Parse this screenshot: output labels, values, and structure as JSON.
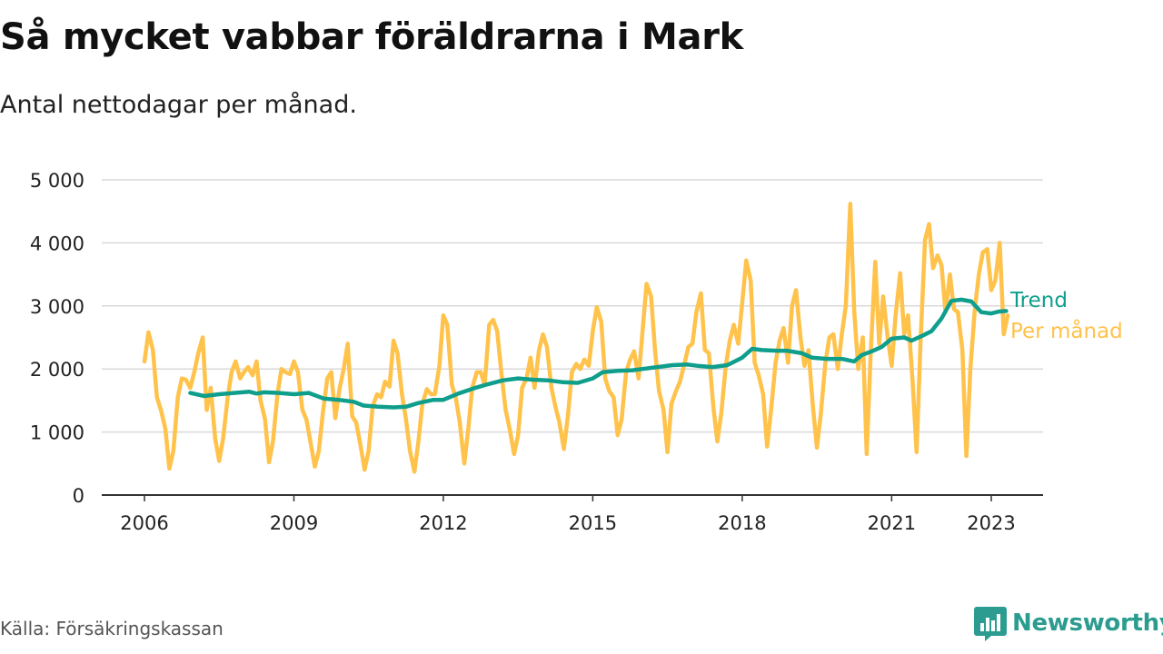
{
  "title": "Så mycket vabbar föräldrarna i Mark",
  "subtitle": "Antal nettodagar per månad.",
  "source": "Källa: Försäkringskassan",
  "brand": {
    "name": "Newsworthy",
    "icon": "bar-chart-icon",
    "color": "#2b9c8f"
  },
  "chart_data": {
    "type": "line",
    "xlim": [
      2006.0,
      2023.75
    ],
    "ylim": [
      0,
      5000
    ],
    "y_ticks": [
      0,
      1000,
      2000,
      3000,
      4000,
      5000
    ],
    "y_tick_labels": [
      "0",
      "1 000",
      "2 000",
      "3 000",
      "4 000",
      "5 000"
    ],
    "x_ticks": [
      2006,
      2009,
      2012,
      2015,
      2018,
      2021,
      2023
    ],
    "x_tick_labels": [
      "2006",
      "2009",
      "2012",
      "2015",
      "2018",
      "2021",
      "2023"
    ],
    "grid": true,
    "legend": "direct labels at line ends (right)",
    "series": [
      {
        "name": "Per månad",
        "color": "#ffc24b",
        "points": [
          [
            2006.0,
            2120
          ],
          [
            2006.08,
            2580
          ],
          [
            2006.17,
            2300
          ],
          [
            2006.25,
            1550
          ],
          [
            2006.33,
            1350
          ],
          [
            2006.42,
            1050
          ],
          [
            2006.5,
            420
          ],
          [
            2006.58,
            700
          ],
          [
            2006.67,
            1550
          ],
          [
            2006.75,
            1850
          ],
          [
            2006.83,
            1830
          ],
          [
            2006.92,
            1700
          ],
          [
            2007.0,
            1950
          ],
          [
            2007.08,
            2250
          ],
          [
            2007.17,
            2500
          ],
          [
            2007.25,
            1350
          ],
          [
            2007.33,
            1700
          ],
          [
            2007.42,
            900
          ],
          [
            2007.5,
            540
          ],
          [
            2007.58,
            900
          ],
          [
            2007.67,
            1550
          ],
          [
            2007.75,
            1950
          ],
          [
            2007.83,
            2120
          ],
          [
            2007.92,
            1850
          ],
          [
            2008.0,
            1950
          ],
          [
            2008.08,
            2030
          ],
          [
            2008.17,
            1900
          ],
          [
            2008.25,
            2120
          ],
          [
            2008.33,
            1500
          ],
          [
            2008.42,
            1200
          ],
          [
            2008.5,
            520
          ],
          [
            2008.58,
            850
          ],
          [
            2008.67,
            1600
          ],
          [
            2008.75,
            2000
          ],
          [
            2008.83,
            1950
          ],
          [
            2008.92,
            1920
          ],
          [
            2009.0,
            2120
          ],
          [
            2009.08,
            1950
          ],
          [
            2009.17,
            1350
          ],
          [
            2009.25,
            1200
          ],
          [
            2009.33,
            850
          ],
          [
            2009.42,
            450
          ],
          [
            2009.5,
            700
          ],
          [
            2009.58,
            1300
          ],
          [
            2009.67,
            1850
          ],
          [
            2009.75,
            1950
          ],
          [
            2009.83,
            1220
          ],
          [
            2009.92,
            1700
          ],
          [
            2010.0,
            2000
          ],
          [
            2010.08,
            2400
          ],
          [
            2010.17,
            1250
          ],
          [
            2010.25,
            1150
          ],
          [
            2010.33,
            820
          ],
          [
            2010.42,
            400
          ],
          [
            2010.5,
            700
          ],
          [
            2010.58,
            1400
          ],
          [
            2010.67,
            1600
          ],
          [
            2010.75,
            1550
          ],
          [
            2010.83,
            1800
          ],
          [
            2010.92,
            1720
          ],
          [
            2011.0,
            2450
          ],
          [
            2011.08,
            2250
          ],
          [
            2011.17,
            1600
          ],
          [
            2011.25,
            1200
          ],
          [
            2011.33,
            700
          ],
          [
            2011.42,
            370
          ],
          [
            2011.5,
            850
          ],
          [
            2011.58,
            1450
          ],
          [
            2011.67,
            1680
          ],
          [
            2011.75,
            1600
          ],
          [
            2011.83,
            1600
          ],
          [
            2011.92,
            2050
          ],
          [
            2012.0,
            2850
          ],
          [
            2012.08,
            2700
          ],
          [
            2012.17,
            1750
          ],
          [
            2012.25,
            1550
          ],
          [
            2012.33,
            1150
          ],
          [
            2012.42,
            500
          ],
          [
            2012.5,
            1050
          ],
          [
            2012.58,
            1700
          ],
          [
            2012.67,
            1950
          ],
          [
            2012.75,
            1950
          ],
          [
            2012.83,
            1750
          ],
          [
            2012.92,
            2700
          ],
          [
            2013.0,
            2780
          ],
          [
            2013.08,
            2600
          ],
          [
            2013.17,
            1900
          ],
          [
            2013.25,
            1350
          ],
          [
            2013.33,
            1050
          ],
          [
            2013.42,
            650
          ],
          [
            2013.5,
            950
          ],
          [
            2013.58,
            1700
          ],
          [
            2013.67,
            1850
          ],
          [
            2013.75,
            2180
          ],
          [
            2013.83,
            1700
          ],
          [
            2013.92,
            2300
          ],
          [
            2014.0,
            2550
          ],
          [
            2014.08,
            2350
          ],
          [
            2014.17,
            1700
          ],
          [
            2014.25,
            1400
          ],
          [
            2014.33,
            1150
          ],
          [
            2014.42,
            730
          ],
          [
            2014.5,
            1250
          ],
          [
            2014.58,
            1950
          ],
          [
            2014.67,
            2080
          ],
          [
            2014.75,
            2000
          ],
          [
            2014.83,
            2150
          ],
          [
            2014.92,
            2050
          ],
          [
            2015.0,
            2600
          ],
          [
            2015.08,
            2980
          ],
          [
            2015.17,
            2750
          ],
          [
            2015.25,
            1850
          ],
          [
            2015.33,
            1650
          ],
          [
            2015.42,
            1550
          ],
          [
            2015.5,
            950
          ],
          [
            2015.58,
            1200
          ],
          [
            2015.67,
            1950
          ],
          [
            2015.75,
            2150
          ],
          [
            2015.83,
            2280
          ],
          [
            2015.92,
            1850
          ],
          [
            2016.0,
            2600
          ],
          [
            2016.08,
            3350
          ],
          [
            2016.17,
            3150
          ],
          [
            2016.25,
            2300
          ],
          [
            2016.33,
            1650
          ],
          [
            2016.42,
            1350
          ],
          [
            2016.5,
            680
          ],
          [
            2016.58,
            1450
          ],
          [
            2016.67,
            1650
          ],
          [
            2016.75,
            1800
          ],
          [
            2016.83,
            2050
          ],
          [
            2016.92,
            2350
          ],
          [
            2017.0,
            2400
          ],
          [
            2017.08,
            2900
          ],
          [
            2017.17,
            3200
          ],
          [
            2017.25,
            2300
          ],
          [
            2017.33,
            2250
          ],
          [
            2017.42,
            1400
          ],
          [
            2017.5,
            850
          ],
          [
            2017.58,
            1300
          ],
          [
            2017.67,
            2050
          ],
          [
            2017.75,
            2450
          ],
          [
            2017.83,
            2700
          ],
          [
            2017.92,
            2400
          ],
          [
            2018.0,
            3050
          ],
          [
            2018.08,
            3720
          ],
          [
            2018.17,
            3400
          ],
          [
            2018.25,
            2100
          ],
          [
            2018.33,
            1900
          ],
          [
            2018.42,
            1600
          ],
          [
            2018.5,
            770
          ],
          [
            2018.58,
            1350
          ],
          [
            2018.67,
            2100
          ],
          [
            2018.75,
            2450
          ],
          [
            2018.83,
            2650
          ],
          [
            2018.92,
            2100
          ],
          [
            2019.0,
            3000
          ],
          [
            2019.08,
            3250
          ],
          [
            2019.17,
            2500
          ],
          [
            2019.25,
            2050
          ],
          [
            2019.33,
            2300
          ],
          [
            2019.42,
            1400
          ],
          [
            2019.5,
            750
          ],
          [
            2019.58,
            1300
          ],
          [
            2019.67,
            2100
          ],
          [
            2019.75,
            2500
          ],
          [
            2019.83,
            2550
          ],
          [
            2019.92,
            2000
          ],
          [
            2020.0,
            2550
          ],
          [
            2020.08,
            3000
          ],
          [
            2020.17,
            4620
          ],
          [
            2020.25,
            2900
          ],
          [
            2020.33,
            2000
          ],
          [
            2020.42,
            2500
          ],
          [
            2020.5,
            650
          ],
          [
            2020.58,
            2250
          ],
          [
            2020.67,
            3700
          ],
          [
            2020.75,
            2400
          ],
          [
            2020.83,
            3150
          ],
          [
            2020.92,
            2500
          ],
          [
            2021.0,
            2050
          ],
          [
            2021.08,
            2850
          ],
          [
            2021.17,
            3520
          ],
          [
            2021.25,
            2550
          ],
          [
            2021.33,
            2850
          ],
          [
            2021.42,
            1800
          ],
          [
            2021.5,
            680
          ],
          [
            2021.58,
            2450
          ],
          [
            2021.67,
            4050
          ],
          [
            2021.75,
            4300
          ],
          [
            2021.83,
            3600
          ],
          [
            2021.92,
            3800
          ],
          [
            2022.0,
            3650
          ],
          [
            2022.08,
            2900
          ],
          [
            2022.17,
            3500
          ],
          [
            2022.25,
            2950
          ],
          [
            2022.33,
            2900
          ],
          [
            2022.42,
            2300
          ],
          [
            2022.5,
            620
          ],
          [
            2022.58,
            2000
          ],
          [
            2022.67,
            2950
          ],
          [
            2022.75,
            3500
          ],
          [
            2022.83,
            3850
          ],
          [
            2022.92,
            3900
          ],
          [
            2023.0,
            3250
          ],
          [
            2023.08,
            3400
          ],
          [
            2023.17,
            4000
          ],
          [
            2023.25,
            2550
          ],
          [
            2023.33,
            2850
          ]
        ]
      },
      {
        "name": "Trend",
        "color": "#0f9e8c",
        "points": [
          [
            2006.92,
            1620
          ],
          [
            2007.2,
            1570
          ],
          [
            2007.5,
            1600
          ],
          [
            2007.8,
            1620
          ],
          [
            2008.1,
            1640
          ],
          [
            2008.25,
            1610
          ],
          [
            2008.4,
            1630
          ],
          [
            2008.7,
            1620
          ],
          [
            2009.0,
            1600
          ],
          [
            2009.3,
            1620
          ],
          [
            2009.6,
            1530
          ],
          [
            2009.9,
            1510
          ],
          [
            2010.2,
            1480
          ],
          [
            2010.4,
            1420
          ],
          [
            2010.7,
            1400
          ],
          [
            2011.0,
            1390
          ],
          [
            2011.25,
            1400
          ],
          [
            2011.5,
            1460
          ],
          [
            2011.8,
            1510
          ],
          [
            2012.0,
            1510
          ],
          [
            2012.3,
            1610
          ],
          [
            2012.6,
            1690
          ],
          [
            2012.9,
            1760
          ],
          [
            2013.2,
            1820
          ],
          [
            2013.5,
            1850
          ],
          [
            2013.8,
            1830
          ],
          [
            2014.1,
            1820
          ],
          [
            2014.4,
            1790
          ],
          [
            2014.7,
            1780
          ],
          [
            2015.0,
            1850
          ],
          [
            2015.2,
            1950
          ],
          [
            2015.5,
            1970
          ],
          [
            2015.8,
            1980
          ],
          [
            2016.0,
            2000
          ],
          [
            2016.3,
            2030
          ],
          [
            2016.6,
            2060
          ],
          [
            2016.9,
            2070
          ],
          [
            2017.1,
            2050
          ],
          [
            2017.4,
            2030
          ],
          [
            2017.7,
            2060
          ],
          [
            2018.0,
            2180
          ],
          [
            2018.2,
            2320
          ],
          [
            2018.4,
            2300
          ],
          [
            2018.7,
            2290
          ],
          [
            2018.9,
            2290
          ],
          [
            2019.2,
            2250
          ],
          [
            2019.4,
            2180
          ],
          [
            2019.7,
            2160
          ],
          [
            2020.0,
            2160
          ],
          [
            2020.25,
            2120
          ],
          [
            2020.4,
            2220
          ],
          [
            2020.6,
            2280
          ],
          [
            2020.8,
            2350
          ],
          [
            2021.0,
            2480
          ],
          [
            2021.25,
            2500
          ],
          [
            2021.4,
            2450
          ],
          [
            2021.6,
            2520
          ],
          [
            2021.8,
            2600
          ],
          [
            2022.0,
            2800
          ],
          [
            2022.2,
            3080
          ],
          [
            2022.4,
            3100
          ],
          [
            2022.6,
            3070
          ],
          [
            2022.8,
            2900
          ],
          [
            2023.0,
            2880
          ],
          [
            2023.15,
            2910
          ],
          [
            2023.3,
            2920
          ]
        ]
      }
    ]
  }
}
